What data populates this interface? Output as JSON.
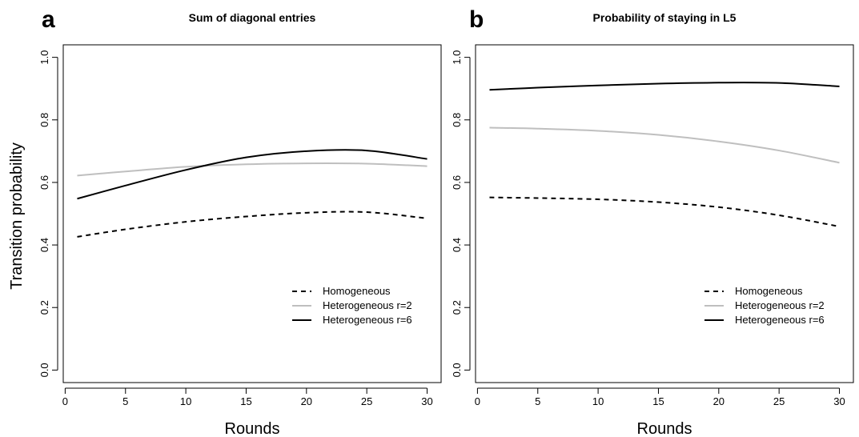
{
  "ylabel": "Transition probability",
  "chart_data": [
    {
      "type": "line",
      "panel_letter": "a",
      "title": "Sum of diagonal entries",
      "xlabel": "Rounds",
      "ylabel": "Transition probability",
      "xlim": [
        1,
        30
      ],
      "ylim": [
        0,
        1
      ],
      "xticks": [
        0,
        5,
        10,
        15,
        20,
        25,
        30
      ],
      "yticks": [
        "0.0",
        "0.2",
        "0.4",
        "0.6",
        "0.8",
        "1.0"
      ],
      "legend_position": "bottom-right",
      "series": [
        {
          "name": "Homogeneous",
          "style": "dashed",
          "color": "#000000",
          "x": [
            1,
            5,
            10,
            15,
            20,
            25,
            30
          ],
          "y": [
            0.426,
            0.45,
            0.474,
            0.491,
            0.503,
            0.505,
            0.485
          ]
        },
        {
          "name": "Heterogeneous r=2",
          "style": "solid",
          "color": "#bfbfbf",
          "x": [
            1,
            5,
            10,
            15,
            20,
            25,
            30
          ],
          "y": [
            0.622,
            0.635,
            0.65,
            0.658,
            0.661,
            0.66,
            0.652
          ]
        },
        {
          "name": "Heterogeneous r=6",
          "style": "solid",
          "color": "#000000",
          "x": [
            1,
            5,
            10,
            15,
            20,
            25,
            30
          ],
          "y": [
            0.548,
            0.59,
            0.64,
            0.68,
            0.7,
            0.702,
            0.675
          ]
        }
      ]
    },
    {
      "type": "line",
      "panel_letter": "b",
      "title": "Probability of staying in L5",
      "xlabel": "Rounds",
      "ylabel": "",
      "xlim": [
        1,
        30
      ],
      "ylim": [
        0,
        1
      ],
      "xticks": [
        0,
        5,
        10,
        15,
        20,
        25,
        30
      ],
      "yticks": [
        "0.0",
        "0.2",
        "0.4",
        "0.6",
        "0.8",
        "1.0"
      ],
      "legend_position": "bottom-right",
      "series": [
        {
          "name": "Homogeneous",
          "style": "dashed",
          "color": "#000000",
          "x": [
            1,
            5,
            10,
            15,
            20,
            25,
            30
          ],
          "y": [
            0.552,
            0.55,
            0.546,
            0.537,
            0.521,
            0.495,
            0.459
          ]
        },
        {
          "name": "Heterogeneous r=2",
          "style": "solid",
          "color": "#bfbfbf",
          "x": [
            1,
            5,
            10,
            15,
            20,
            25,
            30
          ],
          "y": [
            0.775,
            0.772,
            0.765,
            0.752,
            0.731,
            0.702,
            0.663
          ]
        },
        {
          "name": "Heterogeneous r=6",
          "style": "solid",
          "color": "#000000",
          "x": [
            1,
            5,
            10,
            15,
            20,
            25,
            30
          ],
          "y": [
            0.896,
            0.903,
            0.91,
            0.916,
            0.919,
            0.918,
            0.907
          ]
        }
      ]
    }
  ]
}
